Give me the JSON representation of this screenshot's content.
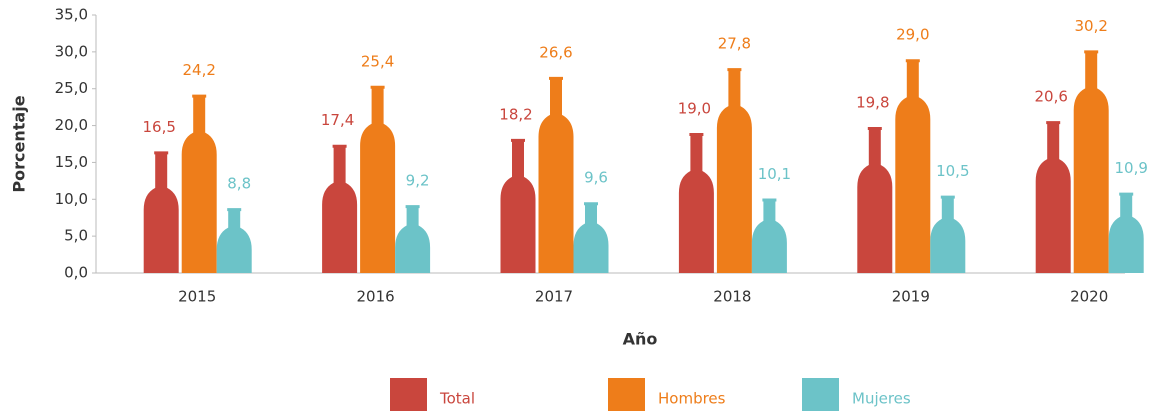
{
  "chart_data": {
    "type": "bar",
    "x_label": "Año",
    "y_label": "Porcentaje",
    "categories": [
      "2015",
      "2016",
      "2017",
      "2018",
      "2019",
      "2020"
    ],
    "series": [
      {
        "name": "Total",
        "color": "#c9463d",
        "values": [
          16.5,
          17.4,
          18.2,
          19.0,
          19.8,
          20.6
        ],
        "value_labels": [
          "16,5",
          "17,4",
          "18,2",
          "19,0",
          "19,8",
          "20,6"
        ]
      },
      {
        "name": "Hombres",
        "color": "#ee7d1a",
        "values": [
          24.2,
          25.4,
          26.6,
          27.8,
          29.0,
          30.2
        ],
        "value_labels": [
          "24,2",
          "25,4",
          "26,6",
          "27,8",
          "29,0",
          "30,2"
        ]
      },
      {
        "name": "Mujeres",
        "color": "#6cc3c8",
        "values": [
          8.8,
          9.2,
          9.6,
          10.1,
          10.5,
          10.9
        ],
        "value_labels": [
          "8,8",
          "9,2",
          "9,6",
          "10,1",
          "10,5",
          "10,9"
        ]
      }
    ],
    "ylim": [
      0,
      35
    ],
    "yticks": [
      {
        "value": 0,
        "label": "0,0"
      },
      {
        "value": 5,
        "label": "5,0"
      },
      {
        "value": 10,
        "label": "10,0"
      },
      {
        "value": 15,
        "label": "15,0"
      },
      {
        "value": 20,
        "label": "20,0"
      },
      {
        "value": 25,
        "label": "25,0"
      },
      {
        "value": 30,
        "label": "30,0"
      },
      {
        "value": 35,
        "label": "35,0"
      }
    ],
    "legend": "bottom"
  }
}
